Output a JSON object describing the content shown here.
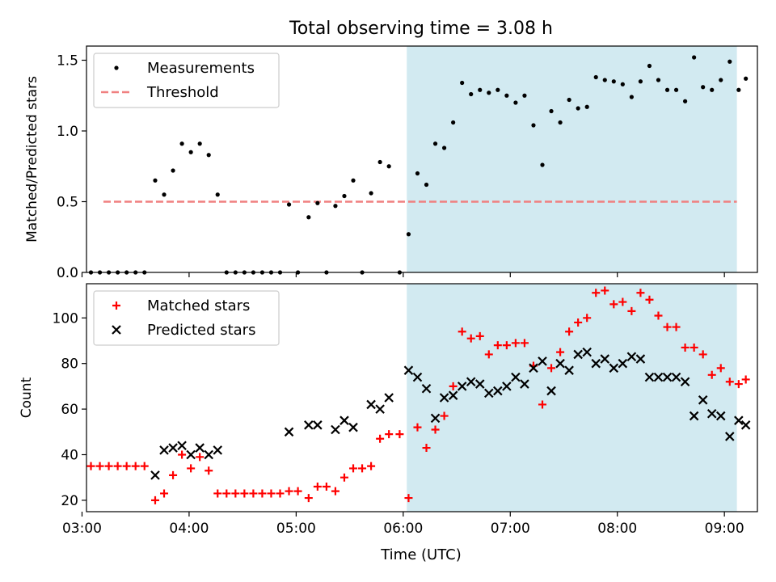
{
  "chart_data": {
    "type": "scatter",
    "title": "Total observing time = 3.08 h",
    "xlabel": "Time (UTC)",
    "x_ticks": [
      "03:00",
      "04:00",
      "05:00",
      "06:00",
      "07:00",
      "08:00",
      "09:00"
    ],
    "shaded_region": {
      "start": "06:02",
      "end": "09:07",
      "color": "#add8e6"
    },
    "panels": [
      {
        "ylabel": "Matched/Predicted stars",
        "ylim": [
          0,
          1.6
        ],
        "y_ticks": [
          "0.0",
          "0.5",
          "1.0",
          "1.5"
        ],
        "legend": {
          "placement": "upper-left",
          "entries": [
            "Measurements",
            "Threshold"
          ]
        },
        "threshold": {
          "value": 0.5,
          "start": "03:12",
          "end": "09:07",
          "color": "#f08080"
        },
        "series": [
          {
            "name": "Measurements",
            "marker": "dot",
            "color": "#000000",
            "points": [
              [
                "03:05",
                0
              ],
              [
                "03:10",
                0
              ],
              [
                "03:15",
                0
              ],
              [
                "03:20",
                0
              ],
              [
                "03:25",
                0
              ],
              [
                "03:30",
                0
              ],
              [
                "03:35",
                0
              ],
              [
                "03:41",
                0.65
              ],
              [
                "03:46",
                0.55
              ],
              [
                "03:51",
                0.72
              ],
              [
                "03:56",
                0.91
              ],
              [
                "04:01",
                0.85
              ],
              [
                "04:06",
                0.91
              ],
              [
                "04:11",
                0.83
              ],
              [
                "04:16",
                0.55
              ],
              [
                "04:21",
                0
              ],
              [
                "04:26",
                0
              ],
              [
                "04:31",
                0
              ],
              [
                "04:36",
                0
              ],
              [
                "04:41",
                0
              ],
              [
                "04:46",
                0
              ],
              [
                "04:51",
                0
              ],
              [
                "04:56",
                0.48
              ],
              [
                "05:01",
                0
              ],
              [
                "05:07",
                0.39
              ],
              [
                "05:12",
                0.49
              ],
              [
                "05:17",
                0
              ],
              [
                "05:22",
                0.47
              ],
              [
                "05:27",
                0.54
              ],
              [
                "05:32",
                0.65
              ],
              [
                "05:37",
                0
              ],
              [
                "05:42",
                0.56
              ],
              [
                "05:47",
                0.78
              ],
              [
                "05:52",
                0.75
              ],
              [
                "05:58",
                0
              ],
              [
                "06:03",
                0.27
              ],
              [
                "06:08",
                0.7
              ],
              [
                "06:13",
                0.62
              ],
              [
                "06:18",
                0.91
              ],
              [
                "06:23",
                0.88
              ],
              [
                "06:28",
                1.06
              ],
              [
                "06:33",
                1.34
              ],
              [
                "06:38",
                1.26
              ],
              [
                "06:43",
                1.29
              ],
              [
                "06:48",
                1.27
              ],
              [
                "06:53",
                1.29
              ],
              [
                "06:58",
                1.25
              ],
              [
                "07:03",
                1.2
              ],
              [
                "07:08",
                1.25
              ],
              [
                "07:13",
                1.04
              ],
              [
                "07:18",
                0.76
              ],
              [
                "07:23",
                1.14
              ],
              [
                "07:28",
                1.06
              ],
              [
                "07:33",
                1.22
              ],
              [
                "07:38",
                1.16
              ],
              [
                "07:43",
                1.17
              ],
              [
                "07:48",
                1.38
              ],
              [
                "07:53",
                1.36
              ],
              [
                "07:58",
                1.35
              ],
              [
                "08:03",
                1.33
              ],
              [
                "08:08",
                1.24
              ],
              [
                "08:13",
                1.35
              ],
              [
                "08:18",
                1.46
              ],
              [
                "08:23",
                1.36
              ],
              [
                "08:28",
                1.29
              ],
              [
                "08:33",
                1.29
              ],
              [
                "08:38",
                1.21
              ],
              [
                "08:43",
                1.52
              ],
              [
                "08:48",
                1.31
              ],
              [
                "08:53",
                1.29
              ],
              [
                "08:58",
                1.36
              ],
              [
                "09:03",
                1.49
              ],
              [
                "09:08",
                1.29
              ],
              [
                "09:12",
                1.37
              ]
            ]
          }
        ]
      },
      {
        "ylabel": "Count",
        "ylim": [
          15,
          115
        ],
        "y_ticks": [
          "20",
          "40",
          "60",
          "80",
          "100"
        ],
        "legend": {
          "placement": "upper-left",
          "entries": [
            "Matched stars",
            "Predicted stars"
          ]
        },
        "series": [
          {
            "name": "Matched stars",
            "marker": "plus",
            "color": "#ff0000",
            "points": [
              [
                "03:05",
                35
              ],
              [
                "03:10",
                35
              ],
              [
                "03:15",
                35
              ],
              [
                "03:20",
                35
              ],
              [
                "03:25",
                35
              ],
              [
                "03:30",
                35
              ],
              [
                "03:35",
                35
              ],
              [
                "03:41",
                20
              ],
              [
                "03:46",
                23
              ],
              [
                "03:51",
                31
              ],
              [
                "03:56",
                40
              ],
              [
                "04:01",
                34
              ],
              [
                "04:06",
                39
              ],
              [
                "04:11",
                33
              ],
              [
                "04:16",
                23
              ],
              [
                "04:21",
                23
              ],
              [
                "04:26",
                23
              ],
              [
                "04:31",
                23
              ],
              [
                "04:36",
                23
              ],
              [
                "04:41",
                23
              ],
              [
                "04:46",
                23
              ],
              [
                "04:51",
                23
              ],
              [
                "04:56",
                24
              ],
              [
                "05:01",
                24
              ],
              [
                "05:07",
                21
              ],
              [
                "05:12",
                26
              ],
              [
                "05:17",
                26
              ],
              [
                "05:22",
                24
              ],
              [
                "05:27",
                30
              ],
              [
                "05:32",
                34
              ],
              [
                "05:37",
                34
              ],
              [
                "05:42",
                35
              ],
              [
                "05:47",
                47
              ],
              [
                "05:52",
                49
              ],
              [
                "05:58",
                49
              ],
              [
                "06:03",
                21
              ],
              [
                "06:08",
                52
              ],
              [
                "06:13",
                43
              ],
              [
                "06:18",
                51
              ],
              [
                "06:23",
                57
              ],
              [
                "06:28",
                70
              ],
              [
                "06:33",
                94
              ],
              [
                "06:38",
                91
              ],
              [
                "06:43",
                92
              ],
              [
                "06:48",
                84
              ],
              [
                "06:53",
                88
              ],
              [
                "06:58",
                88
              ],
              [
                "07:03",
                89
              ],
              [
                "07:08",
                89
              ],
              [
                "07:13",
                79
              ],
              [
                "07:18",
                62
              ],
              [
                "07:23",
                78
              ],
              [
                "07:28",
                85
              ],
              [
                "07:33",
                94
              ],
              [
                "07:38",
                98
              ],
              [
                "07:43",
                100
              ],
              [
                "07:48",
                111
              ],
              [
                "07:53",
                112
              ],
              [
                "07:58",
                106
              ],
              [
                "08:03",
                107
              ],
              [
                "08:08",
                103
              ],
              [
                "08:13",
                111
              ],
              [
                "08:18",
                108
              ],
              [
                "08:23",
                101
              ],
              [
                "08:28",
                96
              ],
              [
                "08:33",
                96
              ],
              [
                "08:38",
                87
              ],
              [
                "08:43",
                87
              ],
              [
                "08:48",
                84
              ],
              [
                "08:53",
                75
              ],
              [
                "08:58",
                78
              ],
              [
                "09:03",
                72
              ],
              [
                "09:08",
                71
              ],
              [
                "09:12",
                73
              ]
            ]
          },
          {
            "name": "Predicted stars",
            "marker": "x",
            "color": "#000000",
            "points": [
              [
                "03:41",
                31
              ],
              [
                "03:46",
                42
              ],
              [
                "03:51",
                43
              ],
              [
                "03:56",
                44
              ],
              [
                "04:01",
                40
              ],
              [
                "04:06",
                43
              ],
              [
                "04:11",
                40
              ],
              [
                "04:16",
                42
              ],
              [
                "04:56",
                50
              ],
              [
                "05:07",
                53
              ],
              [
                "05:12",
                53
              ],
              [
                "05:22",
                51
              ],
              [
                "05:27",
                55
              ],
              [
                "05:32",
                52
              ],
              [
                "05:42",
                62
              ],
              [
                "05:47",
                60
              ],
              [
                "05:52",
                65
              ],
              [
                "06:03",
                77
              ],
              [
                "06:08",
                74
              ],
              [
                "06:13",
                69
              ],
              [
                "06:18",
                56
              ],
              [
                "06:23",
                65
              ],
              [
                "06:28",
                66
              ],
              [
                "06:33",
                70
              ],
              [
                "06:38",
                72
              ],
              [
                "06:43",
                71
              ],
              [
                "06:48",
                67
              ],
              [
                "06:53",
                68
              ],
              [
                "06:58",
                70
              ],
              [
                "07:03",
                74
              ],
              [
                "07:08",
                71
              ],
              [
                "07:13",
                78
              ],
              [
                "07:18",
                81
              ],
              [
                "07:23",
                68
              ],
              [
                "07:28",
                80
              ],
              [
                "07:33",
                77
              ],
              [
                "07:38",
                84
              ],
              [
                "07:43",
                85
              ],
              [
                "07:48",
                80
              ],
              [
                "07:53",
                82
              ],
              [
                "07:58",
                78
              ],
              [
                "08:03",
                80
              ],
              [
                "08:08",
                83
              ],
              [
                "08:13",
                82
              ],
              [
                "08:18",
                74
              ],
              [
                "08:23",
                74
              ],
              [
                "08:28",
                74
              ],
              [
                "08:33",
                74
              ],
              [
                "08:38",
                72
              ],
              [
                "08:43",
                57
              ],
              [
                "08:48",
                64
              ],
              [
                "08:53",
                58
              ],
              [
                "08:58",
                57
              ],
              [
                "09:03",
                48
              ],
              [
                "09:08",
                55
              ],
              [
                "09:12",
                53
              ]
            ]
          }
        ]
      }
    ]
  }
}
